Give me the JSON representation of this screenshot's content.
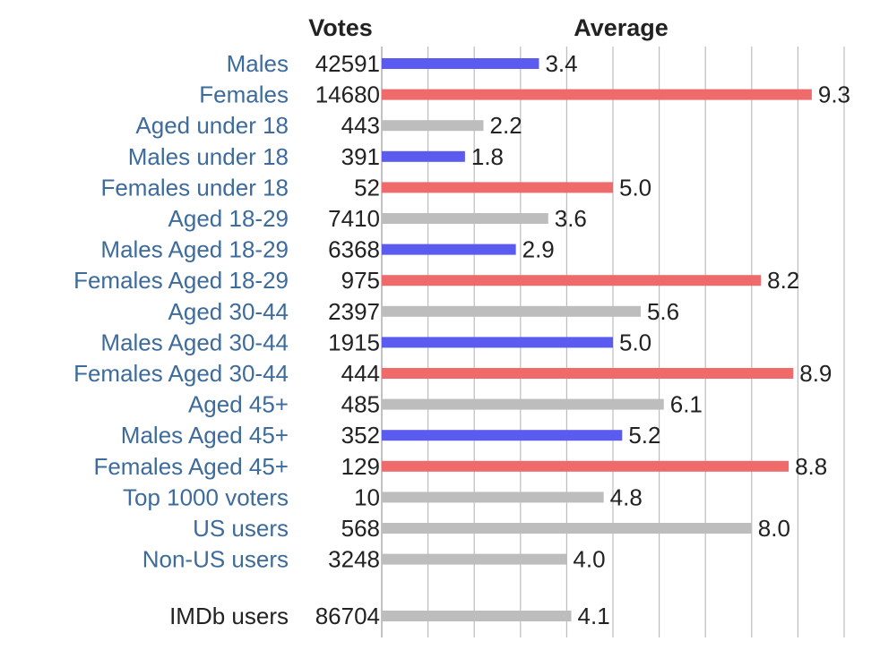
{
  "chart_data": {
    "type": "bar",
    "orientation": "horizontal",
    "headers": {
      "votes": "Votes",
      "average": "Average"
    },
    "xlim": [
      0,
      10
    ],
    "grid": true,
    "colors": {
      "male": "#5b5bef",
      "female": "#ef6a6a",
      "all": "#bdbdbd",
      "label": "#3d6b9c"
    },
    "rows": [
      {
        "label": "Males",
        "votes": "42591",
        "value": 3.4,
        "group": "male"
      },
      {
        "label": "Females",
        "votes": "14680",
        "value": 9.3,
        "group": "female"
      },
      {
        "label": "Aged under 18",
        "votes": "443",
        "value": 2.2,
        "group": "all"
      },
      {
        "label": "Males under 18",
        "votes": "391",
        "value": 1.8,
        "group": "male"
      },
      {
        "label": "Females under 18",
        "votes": "52",
        "value": 5.0,
        "group": "female"
      },
      {
        "label": "Aged 18-29",
        "votes": "7410",
        "value": 3.6,
        "group": "all"
      },
      {
        "label": "Males Aged 18-29",
        "votes": "6368",
        "value": 2.9,
        "group": "male"
      },
      {
        "label": "Females Aged 18-29",
        "votes": "975",
        "value": 8.2,
        "group": "female"
      },
      {
        "label": "Aged 30-44",
        "votes": "2397",
        "value": 5.6,
        "group": "all"
      },
      {
        "label": "Males Aged 30-44",
        "votes": "1915",
        "value": 5.0,
        "group": "male"
      },
      {
        "label": "Females Aged 30-44",
        "votes": "444",
        "value": 8.9,
        "group": "female"
      },
      {
        "label": "Aged 45+",
        "votes": "485",
        "value": 6.1,
        "group": "all"
      },
      {
        "label": "Males Aged 45+",
        "votes": "352",
        "value": 5.2,
        "group": "male"
      },
      {
        "label": "Females Aged 45+",
        "votes": "129",
        "value": 8.8,
        "group": "female"
      },
      {
        "label": "Top 1000 voters",
        "votes": "10",
        "value": 4.8,
        "group": "all"
      },
      {
        "label": "US users",
        "votes": "568",
        "value": 8.0,
        "group": "all"
      },
      {
        "label": "Non-US users",
        "votes": "3248",
        "value": 4.0,
        "group": "all"
      },
      {
        "label": "IMDb users",
        "votes": "86704",
        "value": 4.1,
        "group": "all",
        "separated": true
      }
    ]
  }
}
